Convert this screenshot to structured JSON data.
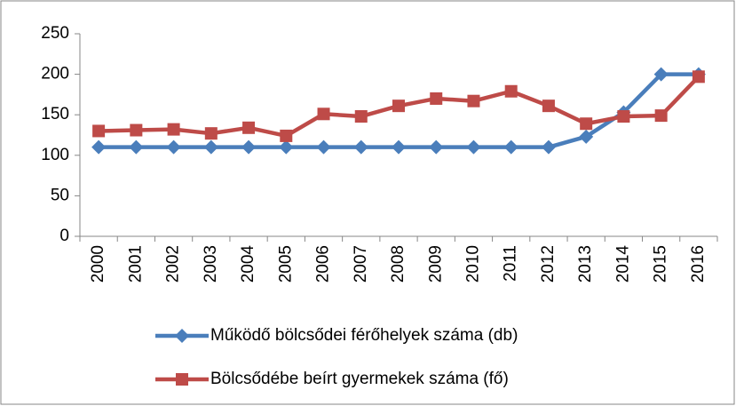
{
  "chart_data": {
    "type": "line",
    "categories": [
      "2000",
      "2001",
      "2002",
      "2003",
      "2004",
      "2005",
      "2006",
      "2007",
      "2008",
      "2009",
      "2010",
      "2011",
      "2012",
      "2013",
      "2014",
      "2015",
      "2016"
    ],
    "series": [
      {
        "name": "Működő bölcsődei férőhelyek száma (db)",
        "color": "#4a7ebb",
        "marker": "diamond",
        "values": [
          110,
          110,
          110,
          110,
          110,
          110,
          110,
          110,
          110,
          110,
          110,
          110,
          110,
          123,
          153,
          200,
          200
        ]
      },
      {
        "name": "Bölcsődébe beírt gyermekek száma (fő)",
        "color": "#be4b48",
        "marker": "square",
        "values": [
          130,
          131,
          132,
          127,
          134,
          124,
          151,
          148,
          161,
          170,
          167,
          179,
          161,
          139,
          148,
          149,
          197
        ]
      }
    ],
    "ylim": [
      0,
      250
    ],
    "yticks": [
      0,
      50,
      100,
      150,
      200,
      250
    ],
    "grid": false,
    "legend": "bottom"
  }
}
